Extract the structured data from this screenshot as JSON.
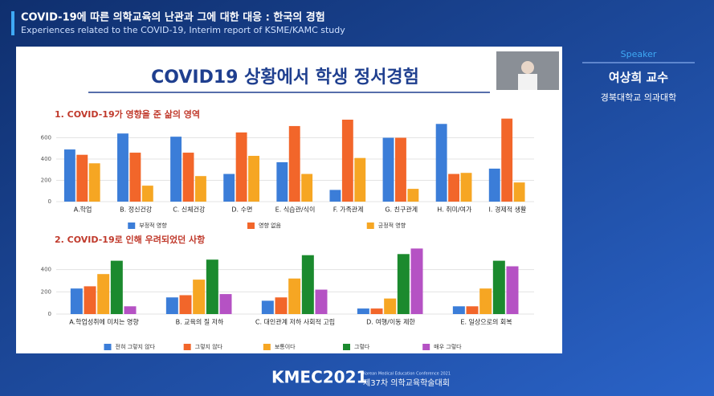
{
  "header": {
    "title": "COVID-19에 따른 의학교육의 난관과 그에 대한 대응 : 한국의 경험",
    "subtitle": "Experiences related to the COVID-19, Interim report of KSME/KAMC study"
  },
  "slide_title": "COVID19 상황에서 학생 정서경험",
  "speaker": {
    "label": "Speaker",
    "name": "여상희 교수",
    "affiliation": "경북대학교 의과대학"
  },
  "footer": {
    "logo": "KMEC2021",
    "conference": "Korean Medical Education Conference 2021",
    "session": "제37차 의학교육학술대회"
  },
  "chart_data": [
    {
      "type": "bar",
      "title": "1. COVID-19가 영향을 준 삶의 영역",
      "categories": [
        "A.학업",
        "B. 정신건강",
        "C. 신체건강",
        "D. 수면",
        "E. 식습관/식이",
        "F. 가족관계",
        "G. 친구관계",
        "H. 취미/여가",
        "I. 경제적 생활"
      ],
      "series": [
        {
          "name": "부정적 영향",
          "color": "#3b7dd8",
          "values": [
            490,
            640,
            610,
            260,
            370,
            110,
            600,
            730,
            310
          ]
        },
        {
          "name": "영향 없음",
          "color": "#f2662a",
          "values": [
            440,
            460,
            460,
            650,
            710,
            770,
            600,
            260,
            780
          ]
        },
        {
          "name": "긍정적 영향",
          "color": "#f6a623",
          "values": [
            360,
            150,
            240,
            430,
            260,
            410,
            120,
            270,
            180
          ]
        }
      ],
      "ylim": [
        0,
        800
      ],
      "yticks": [
        0,
        200,
        400,
        600
      ],
      "grid": true,
      "legend": "bottom"
    },
    {
      "type": "bar",
      "title": "2. COVID-19로 인해 우려되었던 사항",
      "categories": [
        "A.학업성취에 미치는 영향",
        "B. 교육의 질 저하",
        "C. 대인관계 저하 사회적 고립",
        "D. 여행/이동 제한",
        "E. 일상으로의 회복"
      ],
      "series": [
        {
          "name": "전혀 그렇지 않다",
          "color": "#3b7dd8",
          "values": [
            230,
            150,
            120,
            50,
            70
          ]
        },
        {
          "name": "그렇지 않다",
          "color": "#f2662a",
          "values": [
            250,
            170,
            150,
            50,
            70
          ]
        },
        {
          "name": "보통이다",
          "color": "#f6a623",
          "values": [
            360,
            310,
            320,
            140,
            230
          ]
        },
        {
          "name": "그렇다",
          "color": "#1b8a2e",
          "values": [
            480,
            490,
            530,
            540,
            480
          ]
        },
        {
          "name": "매우 그렇다",
          "color": "#b552c4",
          "values": [
            70,
            180,
            220,
            590,
            430
          ]
        }
      ],
      "ylim": [
        0,
        600
      ],
      "yticks": [
        0,
        200,
        400
      ],
      "grid": true,
      "legend": "bottom"
    }
  ]
}
